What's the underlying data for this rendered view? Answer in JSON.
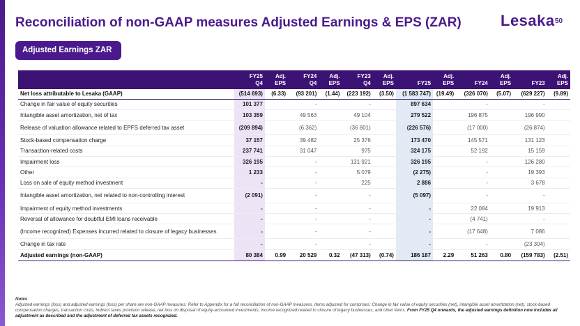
{
  "header": {
    "title": "Reconciliation of non-GAAP measures Adjusted Earnings & EPS (ZAR)",
    "logo_text": "Lesaka",
    "page_number": "50"
  },
  "badge": {
    "label": "Adjusted Earnings ZAR"
  },
  "colors": {
    "brand": "#4a1a8c",
    "header_bg": "#3d1275",
    "quarter_shade": "#ece4f6",
    "fy_shade": "#e2eaf5"
  },
  "table": {
    "columns": [
      {
        "line1": "",
        "line2": ""
      },
      {
        "line1": "FY25",
        "line2": "Q4"
      },
      {
        "line1": "Adj.",
        "line2": "EPS"
      },
      {
        "line1": "FY24",
        "line2": "Q4"
      },
      {
        "line1": "Adj.",
        "line2": "EPS"
      },
      {
        "line1": "FY23",
        "line2": "Q4"
      },
      {
        "line1": "Adj.",
        "line2": "EPS"
      },
      {
        "line1": "",
        "line2": "FY25"
      },
      {
        "line1": "Adj.",
        "line2": "EPS"
      },
      {
        "line1": "",
        "line2": "FY24"
      },
      {
        "line1": "Adj.",
        "line2": "EPS"
      },
      {
        "line1": "",
        "line2": "FY23"
      },
      {
        "line1": "Adj.",
        "line2": "EPS"
      }
    ],
    "rows": [
      {
        "label": "Net loss attributable to Lesaka (GAAP)",
        "cells": [
          "(514 693)",
          "(6.33)",
          "(93 201)",
          "(1.44)",
          "(223 192)",
          "(3.50)",
          "(1 583 747)",
          "(19.49)",
          "(326 070)",
          "(5.07)",
          "(629 227)",
          "(9.89)"
        ]
      },
      {
        "label": "Change in fair value of equity securities",
        "cells": [
          "101 377",
          "",
          "-",
          "",
          "-",
          "",
          "897 634",
          "",
          "-",
          "",
          "-",
          ""
        ]
      },
      {
        "label": "Intangible asset amortization, net of tax",
        "cells": [
          "103 359",
          "",
          "49 563",
          "",
          "49 104",
          "",
          "279 522",
          "",
          "196 875",
          "",
          "196 990",
          ""
        ]
      },
      {
        "label": "Release of valuation allowance related to EPFS deferred tax asset",
        "cells": [
          "(209 894)",
          "",
          "(6 362)",
          "",
          "(36 801)",
          "",
          "(226 576)",
          "",
          "(17 000)",
          "",
          "(26 874)",
          ""
        ]
      },
      {
        "label": "Stock-based compensation charge",
        "cells": [
          "37 157",
          "",
          "39 482",
          "",
          "25 376",
          "",
          "173 470",
          "",
          "145 571",
          "",
          "131 123",
          ""
        ]
      },
      {
        "label": "Transaction-related costs",
        "cells": [
          "237 741",
          "",
          "31 047",
          "",
          "975",
          "",
          "324 175",
          "",
          "52 192",
          "",
          "15 159",
          ""
        ]
      },
      {
        "label": "Impairment loss",
        "cells": [
          "326 195",
          "",
          "-",
          "",
          "131 921",
          "",
          "326 195",
          "",
          "-",
          "",
          "126 280",
          ""
        ]
      },
      {
        "label": "Other",
        "cells": [
          "1 233",
          "",
          "-",
          "",
          "5 079",
          "",
          "(2 275)",
          "",
          "-",
          "",
          "19 393",
          ""
        ]
      },
      {
        "label": "Loss on sale of equity method investment",
        "cells": [
          "-",
          "",
          "-",
          "",
          "225",
          "",
          "2 886",
          "",
          "-",
          "",
          "3 678",
          ""
        ]
      },
      {
        "label": "Intangible asset amortization, net related to non-controlling interest",
        "cells": [
          "(2 091)",
          "",
          "-",
          "",
          "-",
          "",
          "(5 097)",
          "",
          "-",
          "",
          "-",
          ""
        ]
      },
      {
        "label": "Impairment of equity method investments",
        "cells": [
          "-",
          "",
          "-",
          "",
          "-",
          "",
          "-",
          "",
          "22 084",
          "",
          "19 913",
          ""
        ]
      },
      {
        "label": "Reversal of allowance for doubtful EMI loans receivable",
        "cells": [
          "-",
          "",
          "-",
          "",
          "-",
          "",
          "-",
          "",
          "(4 741)",
          "",
          "-",
          ""
        ]
      },
      {
        "label": "(Income recognized) Expenses incurred related to closure of legacy businesses",
        "cells": [
          "-",
          "",
          "-",
          "",
          "-",
          "",
          "-",
          "",
          "(17 648)",
          "",
          "7 086",
          ""
        ]
      },
      {
        "label": "Change in tax rate",
        "cells": [
          "-",
          "",
          "-",
          "",
          "-",
          "",
          "-",
          "",
          "-",
          "",
          "(23 304)",
          ""
        ]
      },
      {
        "label": "Adjusted earnings (non-GAAP)",
        "cells": [
          "80 384",
          "0.99",
          "20 529",
          "0.32",
          "(47 313)",
          "(0.74)",
          "186 187",
          "2.29",
          "51 263",
          "0.80",
          "(159 783)",
          "(2.51)"
        ]
      }
    ]
  },
  "notes": {
    "title": "Notes",
    "body": "Adjusted earnings (loss) and adjusted earnings (loss) per share are non-GAAP measures. Refer to Appendix for a full reconciliation of non-GAAP measures. Items adjusted for comprises: Change in fair value of equity securities (net), intangible asset amortization (net), stock-based compensation charges, transaction costs, indirect taxes provision release, net loss on disposal of equity-accounted investments, income recognized related to closure of legacy businesses, and other items.",
    "emphasis": "From FY25 Q4 onwards, the adjusted earnings definition now includes all adjustment as described and the adjustment of deferred tax assets recognized."
  }
}
